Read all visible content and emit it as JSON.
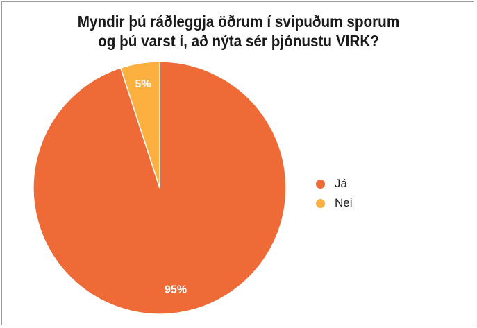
{
  "chart_data": {
    "type": "pie",
    "title_lines": [
      "Myndir þú ráðleggja öðrum í svipuðum sporum",
      "og þú varst í, að nýta sér þjónustu VIRK?"
    ],
    "categories": [
      "Já",
      "Nei"
    ],
    "values": [
      95,
      5
    ],
    "data_labels": [
      "95%",
      "5%"
    ],
    "colors": [
      "#EE6A37",
      "#FBB040"
    ],
    "legend_position": "right"
  }
}
